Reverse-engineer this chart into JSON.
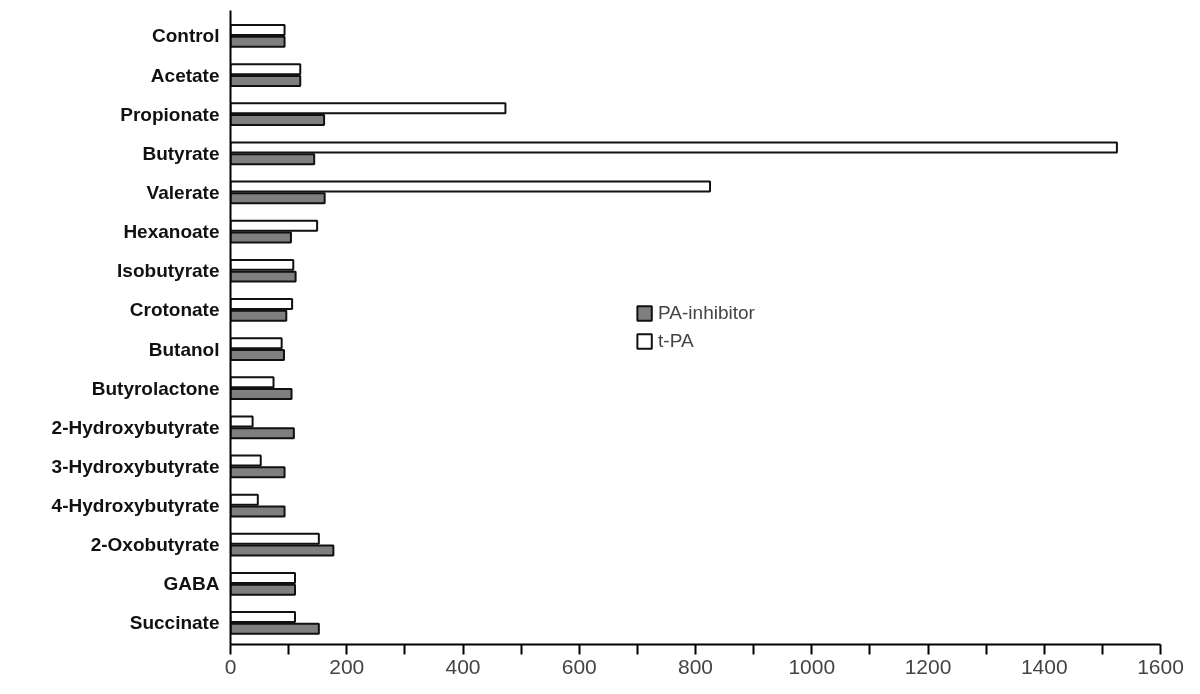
{
  "chart_data": {
    "type": "bar",
    "orientation": "horizontal",
    "categories": [
      "Control",
      "Acetate",
      "Propionate",
      "Butyrate",
      "Valerate",
      "Hexanoate",
      "Isobutyrate",
      "Crotonate",
      "Butanol",
      "Butyrolactone",
      "2-Hydroxybutyrate",
      "3-Hydroxybutyrate",
      "4-Hydroxybutyrate",
      "2-Oxobutyrate",
      "GABA",
      "Succinate"
    ],
    "series": [
      {
        "name": "t-PA",
        "color": "#ffffff",
        "values": [
          93,
          120,
          473,
          1525,
          825,
          149,
          108,
          106,
          88,
          74,
          38,
          52,
          47,
          152,
          111,
          111
        ]
      },
      {
        "name": "PA-inhibitor",
        "color": "#7f7f7f",
        "values": [
          93,
          120,
          161,
          144,
          162,
          104,
          112,
          96,
          92,
          105,
          109,
          93,
          93,
          177,
          111,
          152
        ]
      }
    ],
    "xlim": [
      0,
      1600
    ],
    "xticks": [
      0,
      {
        "value": 100,
        "label": null
      },
      200,
      {
        "value": 300,
        "label": null
      },
      400,
      {
        "value": 500,
        "label": null
      },
      600,
      {
        "value": 700,
        "label": null
      },
      800,
      {
        "value": 900,
        "label": null
      },
      1000,
      {
        "value": 1100,
        "label": null
      },
      1200,
      {
        "value": 1300,
        "label": null
      },
      1400,
      {
        "value": 1500,
        "label": null
      },
      1600
    ],
    "grid": false,
    "legend": "center"
  }
}
